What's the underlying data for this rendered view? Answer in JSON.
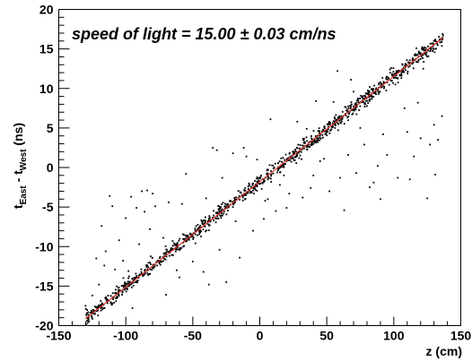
{
  "chart_data": {
    "type": "scatter",
    "title": "",
    "annotation": "speed of light = 15.00 ± 0.03 cm/ns",
    "xlabel": "z (cm)",
    "ylabel_main": "t",
    "ylabel_sub1": "East",
    "ylabel_mid": " - t",
    "ylabel_sub2": "West",
    "ylabel_unit": " (ns)",
    "xlim": [
      -150,
      150
    ],
    "ylim": [
      -20,
      20
    ],
    "xticks": [
      -150,
      -100,
      -50,
      0,
      50,
      100,
      150
    ],
    "yticks": [
      -20,
      -15,
      -10,
      -5,
      0,
      5,
      10,
      15,
      20
    ],
    "xtick_labels": [
      "-150",
      "-100",
      "-50",
      "0",
      "50",
      "100",
      "150"
    ],
    "ytick_labels": [
      "-20",
      "-15",
      "-10",
      "-5",
      "0",
      "5",
      "10",
      "15",
      "20"
    ],
    "fit": {
      "slope": 0.1333,
      "intercept": -1.8,
      "x_range": [
        -130,
        137
      ],
      "color": "#d9342b"
    },
    "outliers": [
      [
        -130,
        -17.5
      ],
      [
        -128,
        -18.3
      ],
      [
        -122,
        -11.5
      ],
      [
        -120,
        -14.8
      ],
      [
        -118,
        -7.4
      ],
      [
        -115,
        -10.6
      ],
      [
        -112,
        -3.6
      ],
      [
        -108,
        -12.9
      ],
      [
        -105,
        -9.2
      ],
      [
        -100,
        -6.4
      ],
      [
        -98,
        -13.1
      ],
      [
        -95,
        -17.8
      ],
      [
        -92,
        -5.1
      ],
      [
        -88,
        -3.0
      ],
      [
        -86,
        -5.6
      ],
      [
        -84,
        -2.9
      ],
      [
        -82,
        -7.8
      ],
      [
        -80,
        -3.3
      ],
      [
        -78,
        -4.9
      ],
      [
        -75,
        -12.0
      ],
      [
        -70,
        -16.1
      ],
      [
        -65,
        -9.3
      ],
      [
        -60,
        -13.9
      ],
      [
        -55,
        -0.8
      ],
      [
        -50,
        -11.9
      ],
      [
        -45,
        -8.2
      ],
      [
        -40,
        -3.9
      ],
      [
        -35,
        2.5
      ],
      [
        -32,
        2.2
      ],
      [
        -30,
        -10.4
      ],
      [
        -25,
        -14.5
      ],
      [
        -22,
        -4.3
      ],
      [
        -18,
        -6.8
      ],
      [
        -15,
        -11.4
      ],
      [
        -12,
        2.5
      ],
      [
        -8,
        -2.0
      ],
      [
        -5,
        -8.0
      ],
      [
        -2,
        1.0
      ],
      [
        3,
        -6.5
      ],
      [
        6,
        -4.0
      ],
      [
        12,
        -5.5
      ],
      [
        15,
        -2.2
      ],
      [
        20,
        -5.1
      ],
      [
        25,
        1.7
      ],
      [
        28,
        5.8
      ],
      [
        32,
        -3.8
      ],
      [
        40,
        -1.0
      ],
      [
        45,
        0.8
      ],
      [
        52,
        -3.0
      ],
      [
        55,
        8.3
      ],
      [
        60,
        -1.3
      ],
      [
        63,
        -5.4
      ],
      [
        68,
        11.1
      ],
      [
        72,
        -0.7
      ],
      [
        78,
        2.9
      ],
      [
        82,
        -2.5
      ],
      [
        88,
        0.2
      ],
      [
        92,
        4.2
      ],
      [
        98,
        12.6
      ],
      [
        103,
        -1.3
      ],
      [
        108,
        7.5
      ],
      [
        112,
        -1.5
      ],
      [
        118,
        8.2
      ],
      [
        122,
        12.5
      ],
      [
        127,
        2.9
      ],
      [
        131,
        -0.9
      ],
      [
        133,
        3.5
      ],
      [
        136,
        6.5
      ],
      [
        -110,
        -4.9
      ],
      [
        -102,
        -11.8
      ],
      [
        -90,
        -9.7
      ],
      [
        -72,
        -8.9
      ],
      [
        -58,
        -4.6
      ],
      [
        -42,
        -13.2
      ],
      [
        -28,
        -1.3
      ],
      [
        -10,
        1.4
      ],
      [
        8,
        6.1
      ],
      [
        22,
        -3.3
      ],
      [
        35,
        4.9
      ],
      [
        48,
        1.1
      ],
      [
        58,
        12.2
      ],
      [
        75,
        5.0
      ],
      [
        85,
        -1.9
      ],
      [
        95,
        1.6
      ],
      [
        115,
        1.4
      ],
      [
        125,
        -3.9
      ],
      [
        -125,
        -16.2
      ],
      [
        -116,
        -12.4
      ],
      [
        -96,
        -3.7
      ],
      [
        -68,
        -4.4
      ],
      [
        -48,
        -9.6
      ],
      [
        -20,
        1.8
      ],
      [
        18,
        -1.0
      ],
      [
        42,
        8.4
      ],
      [
        66,
        1.6
      ],
      [
        90,
        -4.0
      ],
      [
        110,
        4.5
      ],
      [
        120,
        3.7
      ],
      [
        130,
        5.4
      ],
      [
        -62,
        -13.0
      ],
      [
        -38,
        -14.8
      ],
      [
        4,
        -4.2
      ],
      [
        38,
        -2.6
      ],
      [
        70,
        9.6
      ]
    ],
    "n_main_points": 1100,
    "main_scatter_sigma": 0.45
  }
}
